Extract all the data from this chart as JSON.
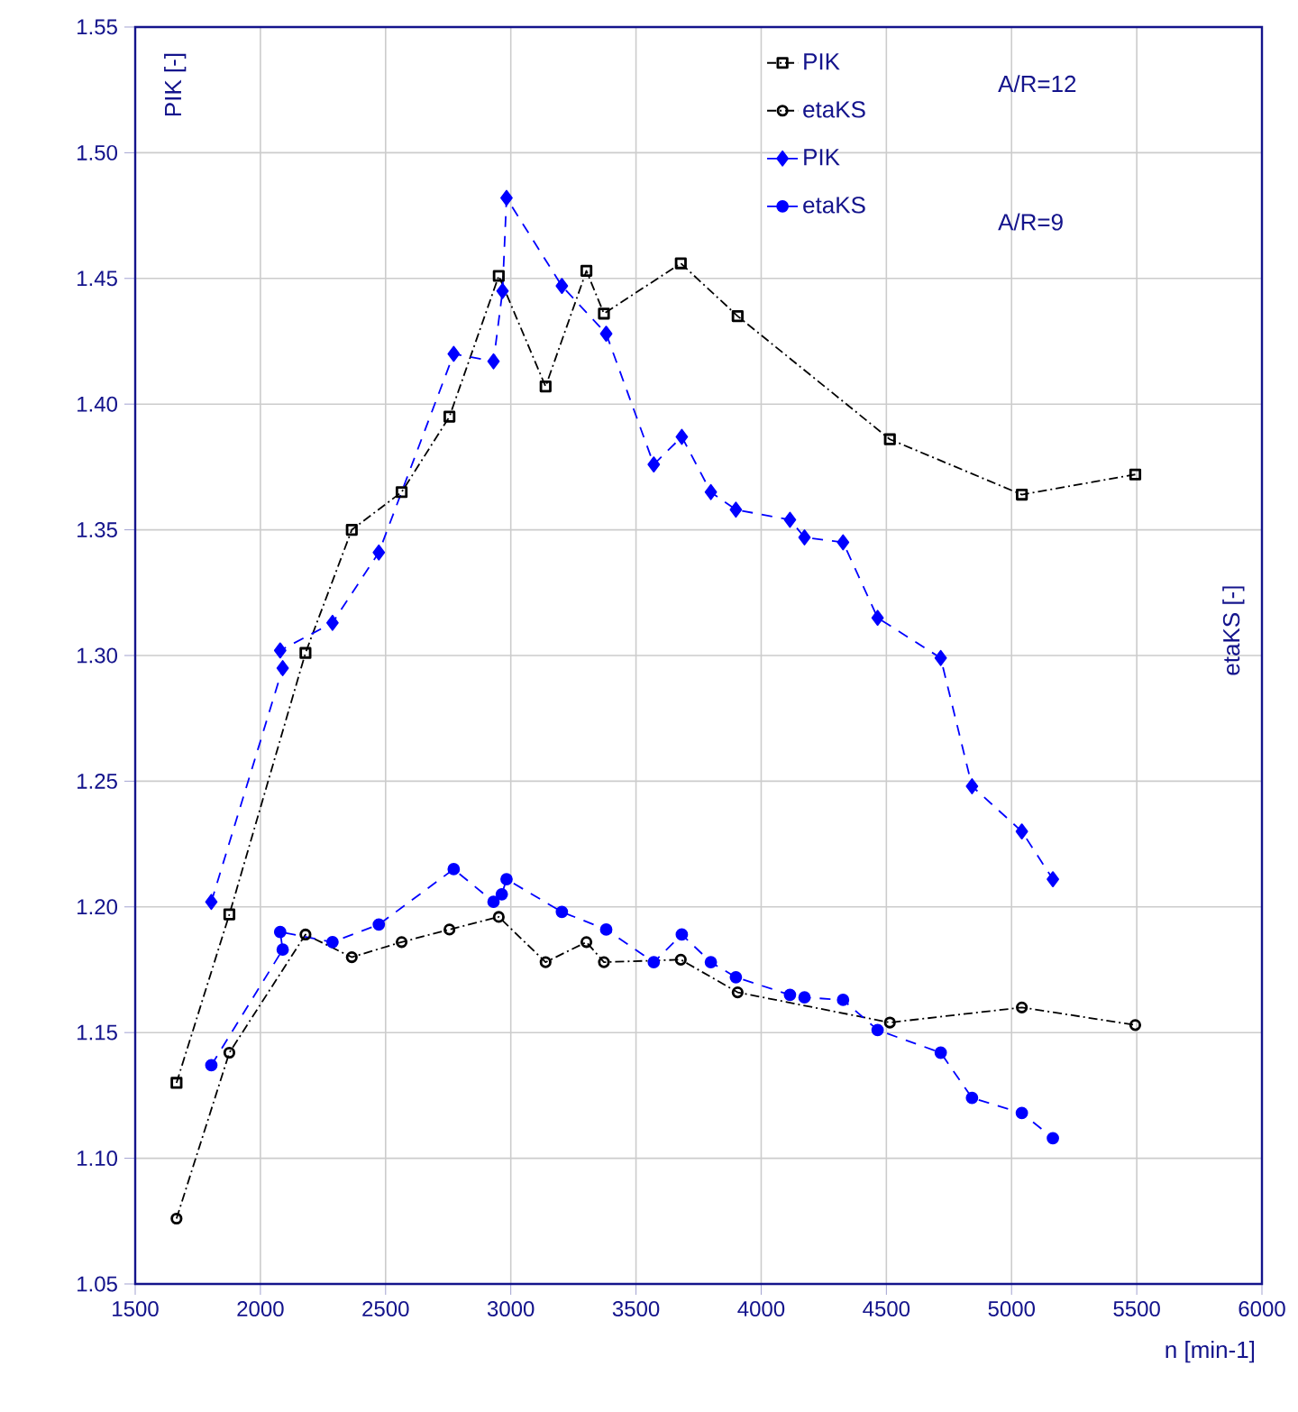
{
  "chart_data": {
    "type": "line",
    "xlabel": "n [min-1]",
    "ylabel": "PIK [-]",
    "annotations": [
      "A/R=12",
      "A/R=9",
      "etaKS [-]"
    ],
    "xlim": [
      1500,
      6000
    ],
    "xticks": [
      1500,
      2000,
      2500,
      3000,
      3500,
      4000,
      4500,
      5000,
      5500,
      6000
    ],
    "ylim": [
      1.05,
      1.55
    ],
    "yticks": [
      1.05,
      {
        "value": 1.1,
        "label": "1.10"
      },
      1.15,
      {
        "value": 1.2,
        "label": "1.20"
      },
      1.25,
      {
        "value": 1.3,
        "label": "1.30"
      },
      1.35,
      {
        "value": 1.4,
        "label": "1.40"
      },
      1.45,
      {
        "value": 1.5,
        "label": "1.50"
      },
      1.55
    ],
    "grid": true,
    "legend": "top right",
    "series": [
      {
        "name": "PIK",
        "color": "#000000",
        "marker": "square",
        "line_style": "dashdot",
        "x": [
          1665,
          1876,
          2180,
          2365,
          2564,
          2755,
          2952,
          3139,
          3302,
          3372,
          3679,
          3906,
          4514,
          5041,
          5494
        ],
        "values": [
          1.13,
          1.197,
          1.301,
          1.35,
          1.365,
          1.395,
          1.451,
          1.407,
          1.453,
          1.436,
          1.456,
          1.435,
          1.386,
          1.364,
          1.372
        ]
      },
      {
        "name": "etaKS",
        "color": "#000000",
        "marker": "circle",
        "line_style": "dashdot",
        "x": [
          1665,
          1876,
          2180,
          2365,
          2564,
          2755,
          2952,
          3139,
          3302,
          3372,
          3679,
          3906,
          4514,
          5041,
          5494
        ],
        "values": [
          1.076,
          1.142,
          1.189,
          1.18,
          1.186,
          1.191,
          1.196,
          1.178,
          1.186,
          1.178,
          1.179,
          1.166,
          1.154,
          1.16,
          1.153
        ]
      },
      {
        "name": "PIK",
        "color": "#0000ff",
        "marker": "diamond",
        "line_style": "dashed",
        "x": [
          1804,
          2089,
          2079,
          2288,
          2473,
          2772,
          2931,
          2967,
          2983,
          3204,
          3381,
          3571,
          3683,
          3799,
          3899,
          4115,
          4173,
          4327,
          4465,
          4717,
          4842,
          5041,
          5165
        ],
        "values": [
          1.202,
          1.295,
          1.302,
          1.313,
          1.341,
          1.42,
          1.417,
          1.445,
          1.482,
          1.447,
          1.428,
          1.376,
          1.387,
          1.365,
          1.358,
          1.354,
          1.347,
          1.345,
          1.315,
          1.299,
          1.248,
          1.23,
          1.211
        ]
      },
      {
        "name": "etaKS",
        "color": "#0000ff",
        "marker": "circle",
        "line_style": "dashed",
        "x": [
          1804,
          2089,
          2079,
          2288,
          2473,
          2772,
          2931,
          2964,
          2983,
          3204,
          3381,
          3571,
          3683,
          3799,
          3899,
          4115,
          4173,
          4327,
          4465,
          4717,
          4842,
          5041,
          5165
        ],
        "values": [
          1.137,
          1.183,
          1.19,
          1.186,
          1.193,
          1.215,
          1.202,
          1.205,
          1.211,
          1.198,
          1.191,
          1.178,
          1.189,
          1.178,
          1.172,
          1.165,
          1.164,
          1.163,
          1.151,
          1.142,
          1.124,
          1.118,
          1.108
        ]
      }
    ]
  }
}
